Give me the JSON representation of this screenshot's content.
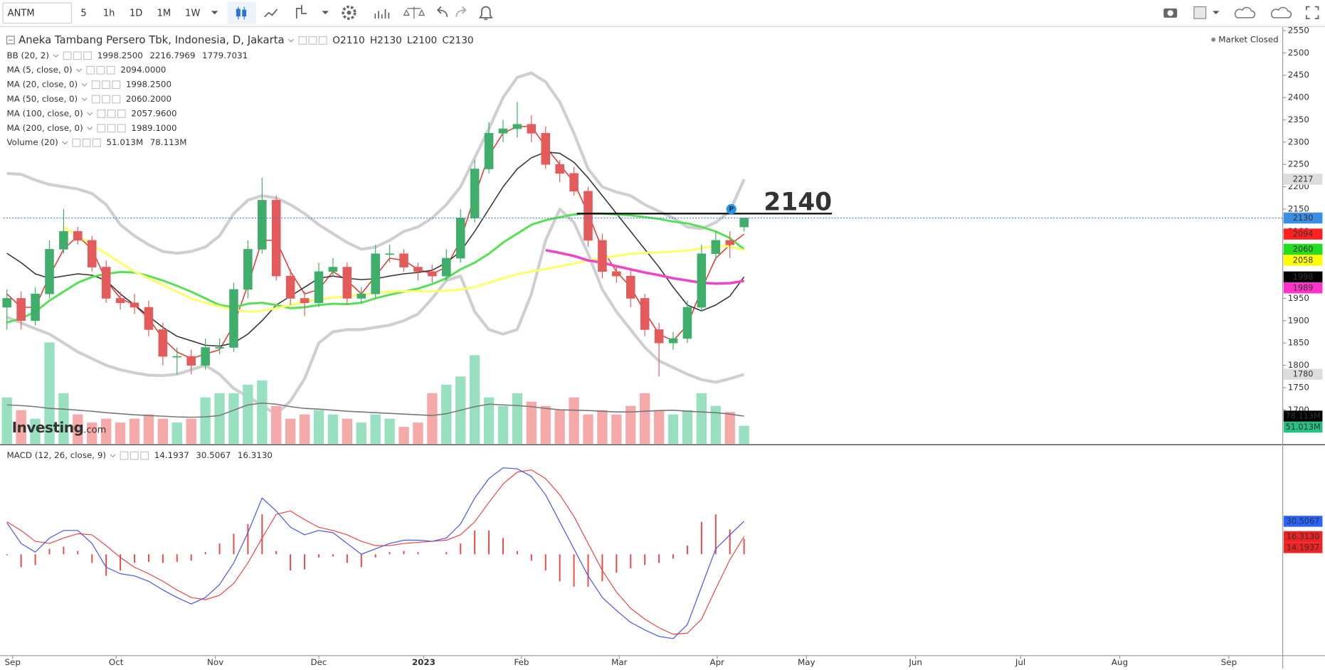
{
  "toolbar": {
    "symbol": "ANTM",
    "intervals": [
      "5",
      "1h",
      "1D",
      "1M",
      "1W"
    ],
    "active_interval": 2
  },
  "chart_data": {
    "type": "candlestick",
    "title": "Aneka Tambang Persero Tbk, Indonesia, D, Jakarta",
    "ohlc": [
      "O2110",
      "H2130",
      "L2100",
      "C2130"
    ],
    "status": "Market Closed",
    "logo": [
      "Investing",
      ".com"
    ],
    "x": [
      0,
      1,
      2,
      3,
      4,
      5,
      6,
      7,
      8,
      9,
      10,
      11,
      12,
      13,
      14,
      15,
      16,
      17,
      18,
      19,
      20,
      21,
      22,
      23,
      24,
      25,
      26,
      27,
      28,
      29,
      30,
      31,
      32,
      33,
      34,
      35,
      36,
      37,
      38,
      39,
      40,
      41,
      42,
      43,
      44,
      45,
      46,
      47,
      48,
      49,
      50,
      51,
      52
    ],
    "open": [
      1930,
      1950,
      1900,
      1960,
      2060,
      2100,
      2080,
      2020,
      1950,
      1940,
      1930,
      1880,
      1820,
      1820,
      1800,
      1840,
      1840,
      1970,
      2060,
      2170,
      2000,
      1950,
      1940,
      2010,
      2020,
      1950,
      1960,
      2050,
      2050,
      2020,
      2010,
      2000,
      2040,
      2130,
      2240,
      2320,
      2330,
      2340,
      2320,
      2250,
      2230,
      2190,
      2080,
      2010,
      2000,
      1950,
      1880,
      1850,
      1860,
      1930,
      2050,
      2080,
      2110
    ],
    "high": [
      1970,
      1965,
      1975,
      2080,
      2150,
      2110,
      2090,
      2035,
      1965,
      1960,
      1945,
      1895,
      1840,
      1835,
      1860,
      1860,
      1985,
      2080,
      2220,
      2180,
      2015,
      1965,
      2030,
      2040,
      2030,
      1975,
      2070,
      2070,
      2060,
      2030,
      2025,
      2060,
      2150,
      2260,
      2345,
      2350,
      2390,
      2360,
      2335,
      2260,
      2245,
      2200,
      2095,
      2025,
      2015,
      1960,
      1895,
      1875,
      1945,
      2070,
      2100,
      2100,
      2130
    ],
    "low": [
      1880,
      1880,
      1890,
      1950,
      2050,
      2070,
      2010,
      1940,
      1925,
      1915,
      1865,
      1800,
      1780,
      1780,
      1790,
      1825,
      1830,
      1950,
      2050,
      1990,
      1935,
      1910,
      1930,
      2000,
      1935,
      1940,
      1950,
      2030,
      2010,
      1990,
      1985,
      1990,
      2030,
      2120,
      2230,
      2300,
      2310,
      2300,
      2240,
      2210,
      2180,
      2065,
      1995,
      1985,
      1930,
      1865,
      1775,
      1835,
      1850,
      1920,
      2035,
      2040,
      2100
    ],
    "close": [
      1950,
      1900,
      1960,
      2060,
      2100,
      2080,
      2020,
      1950,
      1940,
      1930,
      1880,
      1820,
      1820,
      1800,
      1840,
      1840,
      1970,
      2060,
      2170,
      2000,
      1950,
      1940,
      2010,
      2020,
      1950,
      1960,
      2050,
      2050,
      2020,
      2010,
      2000,
      2040,
      2130,
      2240,
      2320,
      2330,
      2340,
      2320,
      2250,
      2230,
      2190,
      2080,
      2010,
      2000,
      1950,
      1880,
      1850,
      1860,
      1930,
      2050,
      2080,
      2070,
      2130
    ],
    "up_color": "#3fae6a",
    "down_color": "#e35b5b",
    "price_line_color": "#3a6fd8",
    "xlim": [
      -0.25,
      90
    ],
    "xticks": [
      {
        "value": 0.4,
        "label": "Sep"
      },
      {
        "value": 7.7,
        "label": "Oct"
      },
      {
        "value": 14.7,
        "label": "Nov"
      },
      {
        "value": 22.0,
        "label": "Dec"
      },
      29.4,
      {
        "value": 36.3,
        "label": "Feb"
      },
      {
        "value": 43.2,
        "label": "Mar"
      },
      {
        "value": 50.1,
        "label": "Apr"
      },
      {
        "value": 56.4,
        "label": "May"
      },
      {
        "value": 64.1,
        "label": "Jun"
      },
      {
        "value": 71.5,
        "label": "Jul"
      },
      {
        "value": 78.5,
        "label": "Aug"
      },
      {
        "value": 86.2,
        "label": "Sep"
      }
    ],
    "xtick_year_label": "2023",
    "ylim": [
      1624,
      2558
    ],
    "yticks": [
      1700,
      1750,
      1800,
      1850,
      1900,
      1950,
      2000,
      2050,
      2100,
      2150,
      2200,
      2250,
      2300,
      2350,
      2400,
      2450,
      2500,
      2550
    ],
    "indicators": [
      {
        "name": "BB (20, 2)",
        "legend_values": [
          "1998.2500",
          "2216.7969",
          "1779.7031"
        ],
        "legend_colors": [
          "#e53935",
          "#9e9e9e",
          "#9e9e9e"
        ],
        "lines": [
          {
            "color": "#cfcfcf",
            "width": 3.5,
            "values": [
              2230,
              2228,
              2215,
              2205,
              2200,
              2195,
              2185,
              2160,
              2115,
              2090,
              2070,
              2055,
              2051,
              2055,
              2065,
              2090,
              2140,
              2170,
              2180,
              2175,
              2160,
              2140,
              2115,
              2095,
              2075,
              2060,
              2065,
              2080,
              2100,
              2110,
              2130,
              2160,
              2200,
              2265,
              2330,
              2400,
              2445,
              2455,
              2435,
              2390,
              2320,
              2240,
              2200,
              2188,
              2180,
              2160,
              2145,
              2130,
              2110,
              2106,
              2120,
              2145,
              2216.7969
            ]
          },
          {
            "color": "#cfcfcf",
            "width": 3.5,
            "values": [
              1908,
              1895,
              1882,
              1870,
              1850,
              1830,
              1815,
              1800,
              1790,
              1783,
              1778,
              1777,
              1780,
              1790,
              1800,
              1780,
              1748,
              1730,
              1710,
              1690,
              1720,
              1770,
              1850,
              1875,
              1880,
              1880,
              1885,
              1890,
              1900,
              1915,
              1950,
              1990,
              2000,
              1920,
              1880,
              1870,
              1880,
              1960,
              2080,
              2150,
              2120,
              2050,
              1970,
              1920,
              1880,
              1840,
              1810,
              1795,
              1780,
              1768,
              1762,
              1770,
              1779.7031
            ]
          }
        ]
      },
      {
        "name": "MA (5, close, 0)",
        "legend_values": [
          "2094.0000"
        ],
        "legend_colors": [
          "#e53935"
        ],
        "lines": [
          {
            "color": "#e53935",
            "width": 1.3,
            "values": [
              1960,
              1930,
              1930,
              2000,
              2060,
              2090,
              2060,
              1990,
              1950,
              1935,
              1905,
              1860,
              1830,
              1815,
              1825,
              1835,
              1890,
              1980,
              2080,
              2080,
              2010,
              1960,
              1970,
              2010,
              1990,
              1960,
              2000,
              2040,
              2035,
              2015,
              2005,
              2020,
              2080,
              2180,
              2270,
              2320,
              2335,
              2335,
              2290,
              2250,
              2210,
              2140,
              2060,
              2010,
              1975,
              1920,
              1870,
              1855,
              1890,
              1970,
              2040,
              2070,
              2094
            ]
          }
        ]
      },
      {
        "name": "MA (20, close, 0)",
        "legend_values": [
          "1998.2500"
        ],
        "legend_colors": [
          "#222222"
        ],
        "lines": [
          {
            "color": "#333333",
            "width": 1.3,
            "values": [
              2051,
              2030,
              2005,
              1995,
              2000,
              2005,
              2002,
              1990,
              1960,
              1935,
              1910,
              1885,
              1865,
              1855,
              1845,
              1843,
              1850,
              1870,
              1900,
              1935,
              1955,
              1975,
              1995,
              2000,
              1995,
              1992,
              1994,
              2000,
              2005,
              2008,
              2013,
              2030,
              2055,
              2100,
              2150,
              2200,
              2240,
              2265,
              2278,
              2275,
              2255,
              2220,
              2180,
              2140,
              2100,
              2060,
              2020,
              1975,
              1935,
              1922,
              1935,
              1955,
              1998.25
            ]
          }
        ]
      },
      {
        "name": "MA (50, close, 0)",
        "legend_values": [
          "2060.2000"
        ],
        "legend_colors": [
          "#1fbf1f"
        ],
        "lines": [
          {
            "color": "#55e055",
            "width": 2.5,
            "values": [
              1896,
              1905,
              1920,
              1945,
              1965,
              1985,
              1998,
              2005,
              2009,
              2008,
              2000,
              1990,
              1978,
              1965,
              1950,
              1935,
              1930,
              1938,
              1940,
              1935,
              1928,
              1930,
              1935,
              1938,
              1937,
              1940,
              1950,
              1958,
              1965,
              1972,
              1982,
              1995,
              2015,
              2030,
              2050,
              2075,
              2095,
              2115,
              2125,
              2132,
              2138,
              2140,
              2140,
              2138,
              2136,
              2132,
              2128,
              2122,
              2118,
              2110,
              2100,
              2085,
              2060.2
            ]
          }
        ]
      },
      {
        "name": "MA (100, close, 0)",
        "legend_values": [
          "2057.9600"
        ],
        "legend_colors": [
          "#e6e600"
        ],
        "lines": [
          {
            "color": "#ffff66",
            "width": 2.5,
            "values": [
              null,
              null,
              null,
              null,
              2110,
              2090,
              2070,
              2050,
              2030,
              2010,
              1995,
              1980,
              1965,
              1950,
              1940,
              1932,
              1925,
              1920,
              1922,
              1928,
              1935,
              1942,
              1948,
              1952,
              1955,
              1958,
              1962,
              1965,
              1966,
              1966,
              1966,
              1967,
              1970,
              1975,
              1985,
              1995,
              2004,
              2010,
              2016,
              2022,
              2028,
              2035,
              2040,
              2045,
              2050,
              2052,
              2053,
              2055,
              2057,
              2062,
              2068,
              2066,
              2057.96
            ]
          }
        ]
      },
      {
        "name": "MA (200, close, 0)",
        "legend_values": [
          "1989.1000"
        ],
        "legend_colors": [
          "#ee00cc"
        ],
        "lines": [
          {
            "color": "#ee44cc",
            "width": 3,
            "values": [
              null,
              null,
              null,
              null,
              null,
              null,
              null,
              null,
              null,
              null,
              null,
              null,
              null,
              null,
              null,
              null,
              null,
              null,
              null,
              null,
              null,
              null,
              null,
              null,
              null,
              null,
              null,
              null,
              null,
              null,
              null,
              null,
              null,
              null,
              null,
              null,
              null,
              null,
              2058,
              2052,
              2045,
              2035,
              2030,
              2022,
              2015,
              2008,
              2002,
              1995,
              1990,
              1985,
              1983,
              1984,
              1989.1
            ]
          }
        ]
      }
    ],
    "volume": {
      "name": "Volume (20)",
      "legend_values": [
        "51.013M",
        "78.113M"
      ],
      "legend_colors": [
        "#1fae6a",
        "#333333"
      ],
      "ylim": [
        0,
        1176
      ],
      "up_color": "#98e0c0",
      "down_color": "#f5a9a9",
      "ma_color": "#777777",
      "values": [
        131,
        95,
        71,
        286,
        143,
        83,
        60,
        71,
        60,
        71,
        83,
        71,
        60,
        71,
        131,
        143,
        143,
        167,
        179,
        107,
        71,
        83,
        95,
        83,
        71,
        60,
        83,
        71,
        48,
        60,
        143,
        167,
        190,
        250,
        131,
        107,
        143,
        119,
        107,
        95,
        131,
        83,
        95,
        83,
        107,
        143,
        95,
        83,
        95,
        143,
        107,
        90,
        51.013
      ],
      "ma": [
        110,
        108,
        105,
        100,
        98,
        95,
        92,
        88,
        85,
        82,
        80,
        78,
        76,
        75,
        76,
        80,
        95,
        110,
        115,
        112,
        105,
        100,
        98,
        95,
        92,
        90,
        88,
        86,
        84,
        82,
        80,
        85,
        95,
        105,
        112,
        110,
        108,
        105,
        100,
        96,
        95,
        94,
        92,
        90,
        90,
        92,
        94,
        95,
        92,
        90,
        88,
        84,
        78.113
      ]
    },
    "annotation": {
      "text": "2140",
      "value": 2140,
      "x": [
        40.2,
        58.2
      ],
      "color": "#111111"
    },
    "marker": {
      "text": "P",
      "x": 51.1,
      "value": 2150,
      "color": "#2196f3"
    },
    "price_badges": [
      2217,
      2130,
      2094,
      2060,
      2058,
      1998,
      1989,
      1780
    ],
    "price_badge_colors": [
      "#dddddd",
      "#3a8ee6",
      "#ff2020",
      "#22dd22",
      "#ffff00",
      "#000000",
      "#ff33cc",
      "#dddddd"
    ],
    "price_badge_text_colors": [
      "#333333",
      "#ffffff",
      "#222222",
      "#222222",
      "#222222",
      "#ffffff",
      "#222222",
      "#333333"
    ],
    "volume_badges": [
      {
        "value": 78.113,
        "label": "78.113M"
      },
      {
        "value": 51.013,
        "label": "51.013M"
      }
    ],
    "volume_badge_colors": [
      "#000000",
      "#26c281"
    ],
    "macd": {
      "name": "MACD (12, 26, close, 9)",
      "legend_values": [
        "14.1937",
        "30.5067",
        "16.3130"
      ],
      "legend_colors": [
        "#e53935",
        "#2b3fe0",
        "#e53935"
      ],
      "ylim": [
        -93,
        99
      ],
      "macd_color": "#4455ee",
      "signal_color": "#ee4444",
      "hist_color": "#ee4444",
      "macd_line": [
        29,
        10,
        2,
        15,
        22,
        22,
        10,
        -12,
        -18,
        -20,
        -25,
        -33,
        -40,
        -46,
        -40,
        -28,
        -8,
        20,
        52,
        40,
        25,
        18,
        22,
        20,
        10,
        0,
        5,
        10,
        13,
        13,
        12,
        15,
        28,
        52,
        70,
        80,
        79,
        72,
        55,
        30,
        5,
        -20,
        -40,
        -52,
        -63,
        -70,
        -76,
        -78,
        -65,
        -30,
        5,
        18,
        30.5067
      ],
      "signal": [
        30,
        22,
        12,
        10,
        15,
        19,
        18,
        8,
        -3,
        -12,
        -18,
        -25,
        -33,
        -40,
        -42,
        -38,
        -27,
        -8,
        15,
        37,
        40,
        32,
        25,
        22,
        18,
        12,
        8,
        8,
        10,
        11,
        12,
        13,
        18,
        30,
        48,
        65,
        76,
        78,
        70,
        55,
        35,
        10,
        -15,
        -35,
        -50,
        -60,
        -68,
        -74,
        -73,
        -60,
        -32,
        -5,
        16.313
      ],
      "histogram": [
        -1,
        -12,
        -10,
        5,
        7,
        3,
        -8,
        -20,
        -15,
        -8,
        -7,
        -8,
        -7,
        -6,
        2,
        10,
        19,
        28,
        37,
        3,
        -15,
        -14,
        -3,
        -2,
        -8,
        -12,
        -3,
        2,
        3,
        2,
        0,
        2,
        10,
        22,
        22,
        15,
        3,
        -6,
        -15,
        -25,
        -30,
        -30,
        -25,
        -17,
        -13,
        -10,
        -8,
        -4,
        8,
        30,
        37,
        23,
        14.1937
      ],
      "badges": [
        30.5067,
        {
          "value": 16.313,
          "label": "16.3130"
        },
        14.1937
      ],
      "badge_colors": [
        "#2962ff",
        "#ee2222",
        "#ee2222"
      ]
    }
  }
}
